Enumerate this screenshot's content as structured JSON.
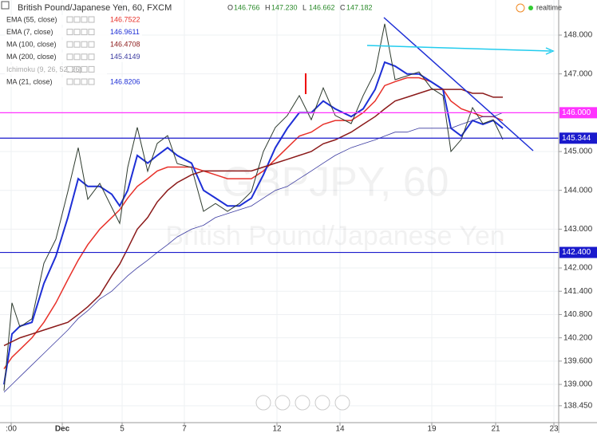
{
  "chart_data": {
    "type": "line",
    "title": "British Pound/Japanese Yen, 60, FXCM",
    "ohlc": {
      "labels": [
        "O",
        "H",
        "L",
        "C"
      ],
      "texts": [
        "146.766",
        "147.230",
        "146.662",
        "147.182"
      ]
    },
    "status": "realtime",
    "watermarks": [
      "GBPJPY, 60",
      "British Pound/Japanese Yen"
    ],
    "x": [
      5,
      15,
      25,
      40,
      55,
      70,
      85,
      98,
      110,
      125,
      140,
      150,
      160,
      172,
      185,
      197,
      210,
      222,
      240,
      255,
      270,
      285,
      300,
      315,
      330,
      345,
      360,
      375,
      390,
      405,
      420,
      440,
      455,
      470,
      482,
      495,
      510,
      525,
      540,
      555,
      565,
      578,
      592,
      605,
      618,
      630
    ],
    "xlim": [
      0,
      700
    ],
    "xticks": [
      {
        "value": 14,
        "label": ":00"
      },
      {
        "value": 78,
        "label": "Dec"
      },
      {
        "value": 153,
        "label": "5"
      },
      {
        "value": 231,
        "label": "7"
      },
      {
        "value": 347,
        "label": "12"
      },
      {
        "value": 426,
        "label": "14"
      },
      {
        "value": 541,
        "label": "19"
      },
      {
        "value": 621,
        "label": "21"
      },
      {
        "value": 694,
        "label": "23"
      }
    ],
    "ylim": [
      138.015,
      148.904
    ],
    "yticks": [
      {
        "value": 148,
        "label": "148.000"
      },
      {
        "value": 147,
        "label": "147.000"
      },
      {
        "value": 145,
        "label": "145.000"
      },
      {
        "value": 144,
        "label": "144.000"
      },
      {
        "value": 143,
        "label": "143.000"
      },
      {
        "value": 142,
        "label": "142.000"
      },
      {
        "value": 141.4,
        "label": "141.400"
      },
      {
        "value": 140.8,
        "label": "140.800"
      },
      {
        "value": 140.2,
        "label": "140.200"
      },
      {
        "value": 139.6,
        "label": "139.600"
      },
      {
        "value": 139,
        "label": "139.000"
      },
      {
        "value": 138.45,
        "label": "138.450"
      }
    ],
    "grid": true,
    "price": {
      "color": "#2e3b2e",
      "values": [
        138.84,
        141.1,
        140.48,
        140.69,
        142.12,
        142.74,
        143.97,
        145.1,
        143.77,
        144.18,
        143.56,
        143.15,
        144.59,
        145.62,
        144.49,
        145.21,
        145.41,
        144.69,
        144.59,
        143.46,
        143.66,
        143.46,
        143.66,
        143.97,
        145.0,
        145.62,
        145.93,
        146.44,
        145.82,
        146.64,
        145.93,
        145.72,
        146.44,
        147.05,
        148.29,
        146.85,
        146.95,
        147.05,
        146.64,
        146.44,
        145.0,
        145.31,
        146.13,
        145.72,
        145.82,
        145.31
      ]
    },
    "series": [
      {
        "name": "EMA (55, close)",
        "color": "#e8312a",
        "last": 146.7522,
        "values": [
          139.4,
          139.7,
          139.9,
          140.2,
          140.6,
          141.1,
          141.7,
          142.2,
          142.6,
          143.0,
          143.3,
          143.5,
          143.8,
          144.1,
          144.3,
          144.5,
          144.6,
          144.6,
          144.6,
          144.5,
          144.4,
          144.3,
          144.3,
          144.3,
          144.5,
          144.8,
          145.1,
          145.4,
          145.5,
          145.7,
          145.8,
          145.8,
          146.0,
          146.3,
          146.7,
          146.8,
          146.9,
          146.9,
          146.8,
          146.6,
          146.3,
          146.1,
          146.0,
          145.9,
          145.9,
          145.8
        ]
      },
      {
        "name": "EMA (7, close)",
        "color": "#1e2fd6",
        "last": 146.9611,
        "values": [
          139.0,
          140.3,
          140.5,
          140.6,
          141.6,
          142.3,
          143.3,
          144.3,
          144.1,
          144.1,
          143.9,
          143.6,
          144.0,
          144.9,
          144.7,
          144.9,
          145.1,
          144.9,
          144.7,
          144.0,
          143.8,
          143.6,
          143.6,
          143.8,
          144.4,
          145.1,
          145.6,
          146.0,
          146.0,
          146.3,
          146.1,
          145.9,
          146.1,
          146.6,
          147.3,
          147.2,
          147.0,
          147.0,
          146.8,
          146.6,
          145.6,
          145.4,
          145.8,
          145.7,
          145.8,
          145.6
        ]
      },
      {
        "name": "MA (100, close)",
        "color": "#8b1a1a",
        "last": 146.4708,
        "values": [
          140.0,
          140.1,
          140.2,
          140.3,
          140.4,
          140.5,
          140.6,
          140.8,
          141.0,
          141.3,
          141.8,
          142.1,
          142.5,
          143.0,
          143.3,
          143.7,
          144.0,
          144.2,
          144.4,
          144.5,
          144.5,
          144.5,
          144.5,
          144.5,
          144.6,
          144.7,
          144.8,
          144.9,
          145.0,
          145.2,
          145.3,
          145.5,
          145.7,
          145.9,
          146.1,
          146.3,
          146.4,
          146.5,
          146.6,
          146.6,
          146.6,
          146.6,
          146.5,
          146.5,
          146.4,
          146.4
        ]
      },
      {
        "name": "MA (200, close)",
        "color": "#3a3aa0",
        "last": 145.4149,
        "values": [
          138.8,
          139.0,
          139.2,
          139.5,
          139.8,
          140.1,
          140.4,
          140.7,
          140.9,
          141.2,
          141.4,
          141.6,
          141.8,
          142.0,
          142.2,
          142.4,
          142.6,
          142.8,
          143.0,
          143.1,
          143.3,
          143.4,
          143.5,
          143.6,
          143.8,
          144.0,
          144.1,
          144.3,
          144.5,
          144.7,
          144.9,
          145.1,
          145.2,
          145.3,
          145.4,
          145.5,
          145.5,
          145.6,
          145.6,
          145.6,
          145.6,
          145.7,
          145.8,
          145.9,
          145.9,
          146.0
        ]
      },
      {
        "name": "Ichimoku (9, 26, 52, 26)",
        "color": "#aaaaaa"
      },
      {
        "name": "MA (21, close)",
        "color": "#1e2fd6",
        "last": 146.8206
      }
    ],
    "price_lines": [
      {
        "value": 146,
        "label": "146.000",
        "color": "#ff33ff"
      },
      {
        "value": 145.344,
        "color": "#1a1acc"
      },
      {
        "value": 142.4,
        "label": "142.400",
        "color": "#1a1acc"
      }
    ]
  }
}
